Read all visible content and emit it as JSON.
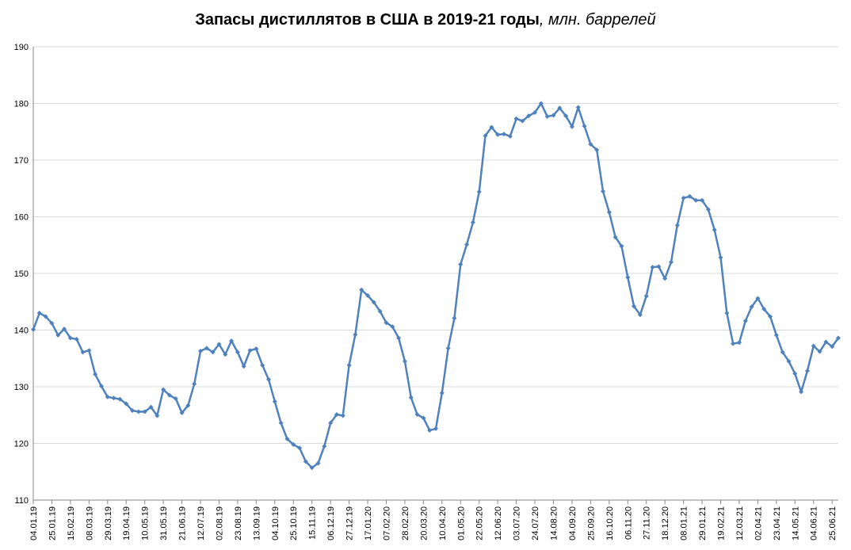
{
  "chart_data": {
    "type": "line",
    "title": "Запасы дистиллятов в США в 2019-21 годы",
    "title_unit": ", млн. баррелей",
    "xlabel": "",
    "ylabel": "",
    "ylim": [
      110,
      190
    ],
    "yticks": [
      "110",
      "120",
      "130",
      "140",
      "150",
      "160",
      "170",
      "180",
      "190"
    ],
    "grid": "horizontal",
    "line_color": "#4F81BD",
    "x_tick_labels": [
      "04.01.19",
      "25.01.19",
      "15.02.19",
      "08.03.19",
      "29.03.19",
      "19.04.19",
      "10.05.19",
      "31.05.19",
      "21.06.19",
      "12.07.19",
      "02.08.19",
      "23.08.19",
      "13.09.19",
      "04.10.19",
      "25.10.19",
      "15.11.19",
      "06.12.19",
      "27.12.19",
      "17.01.20",
      "07.02.20",
      "28.02.20",
      "20.03.20",
      "10.04.20",
      "01.05.20",
      "22.05.20",
      "12.06.20",
      "03.07.20",
      "24.07.20",
      "14.08.20",
      "04.09.20",
      "25.09.20",
      "16.10.20",
      "06.11.20",
      "27.11.20",
      "18.12.20",
      "08.01.21",
      "29.01.21",
      "19.02.21",
      "12.03.21",
      "02.04.21",
      "23.04.21",
      "14.05.21",
      "04.06.21",
      "25.06.21"
    ],
    "series": [
      {
        "values": [
          140.1,
          143.0,
          142.4,
          141.2,
          139.1,
          140.2,
          138.6,
          138.4,
          136.1,
          136.4,
          132.2,
          130.1,
          128.2,
          128.0,
          127.8,
          127.0,
          125.8,
          125.6,
          125.6,
          126.4,
          124.9,
          129.5,
          128.5,
          127.9,
          125.4,
          126.7,
          130.5,
          136.3,
          136.8,
          136.1,
          137.5,
          135.7,
          138.1,
          136.1,
          133.6,
          136.4,
          136.7,
          133.8,
          131.3,
          127.4,
          123.6,
          120.8,
          119.8,
          119.2,
          116.8,
          115.7,
          116.5,
          119.5,
          123.6,
          125.1,
          124.9,
          133.8,
          139.2,
          147.1,
          146.1,
          144.9,
          143.3,
          141.3,
          140.6,
          138.6,
          134.5,
          128.1,
          125.1,
          124.5,
          122.3,
          122.6,
          128.9,
          136.8,
          142.1,
          151.6,
          155.1,
          159.0,
          164.4,
          174.3,
          175.8,
          174.5,
          174.6,
          174.2,
          177.3,
          176.9,
          177.8,
          178.4,
          180.0,
          177.7,
          177.9,
          179.2,
          177.8,
          175.9,
          179.3,
          176.0,
          172.8,
          171.8,
          164.5,
          160.8,
          156.4,
          154.8,
          149.3,
          144.2,
          142.7,
          146.0,
          151.1,
          151.2,
          149.1,
          152.0,
          158.5,
          163.3,
          163.6,
          162.9,
          162.9,
          161.3,
          157.7,
          152.8,
          143.0,
          137.6,
          137.8,
          141.6,
          144.1,
          145.6,
          143.7,
          142.4,
          139.1,
          136.1,
          134.5,
          132.3,
          129.1,
          132.8,
          137.2,
          136.2,
          137.9,
          137.1,
          138.6
        ]
      }
    ]
  }
}
